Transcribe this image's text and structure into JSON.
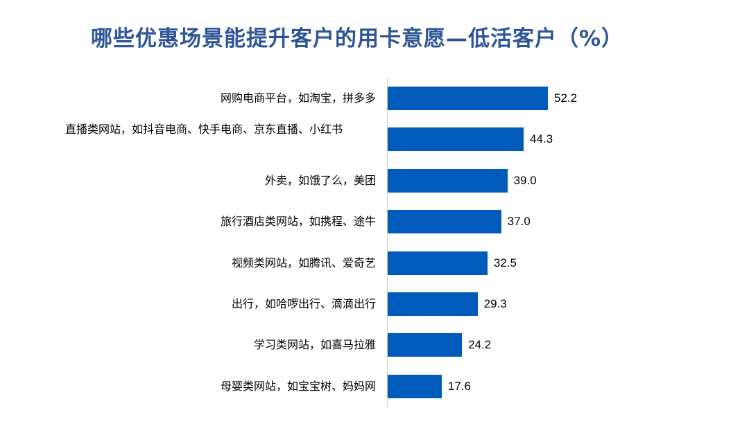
{
  "title": "哪些优惠场景能提升客户的用卡意愿—低活客户（%）",
  "colors": {
    "bar": "#005BBB",
    "title": "#2F5597",
    "axis": "#D0D0D0"
  },
  "chart_data": {
    "type": "bar",
    "orientation": "horizontal",
    "title": "哪些优惠场景能提升客户的用卡意愿—低活客户（%）",
    "xlabel": "",
    "ylabel": "",
    "unit": "%",
    "grid": false,
    "legend": null,
    "categories": [
      "网购电商平台，如淘宝，拼多多",
      "直播类网站，如抖音电商、快手电商、京东直播、小红书",
      "外卖，如饿了么，美团",
      "旅行酒店类网站，如携程、途牛",
      "视频类网站，如腾讯、爱奇艺",
      "出行，如哈啰出行、滴滴出行",
      "学习类网站，如喜马拉雅",
      "母婴类网站，如宝宝树、妈妈网"
    ],
    "values": [
      52.2,
      44.3,
      39.0,
      37.0,
      32.5,
      29.3,
      24.2,
      17.6
    ],
    "value_labels": [
      "52.2",
      "44.3",
      "39.0",
      "37.0",
      "32.5",
      "29.3",
      "24.2",
      "17.6"
    ]
  }
}
